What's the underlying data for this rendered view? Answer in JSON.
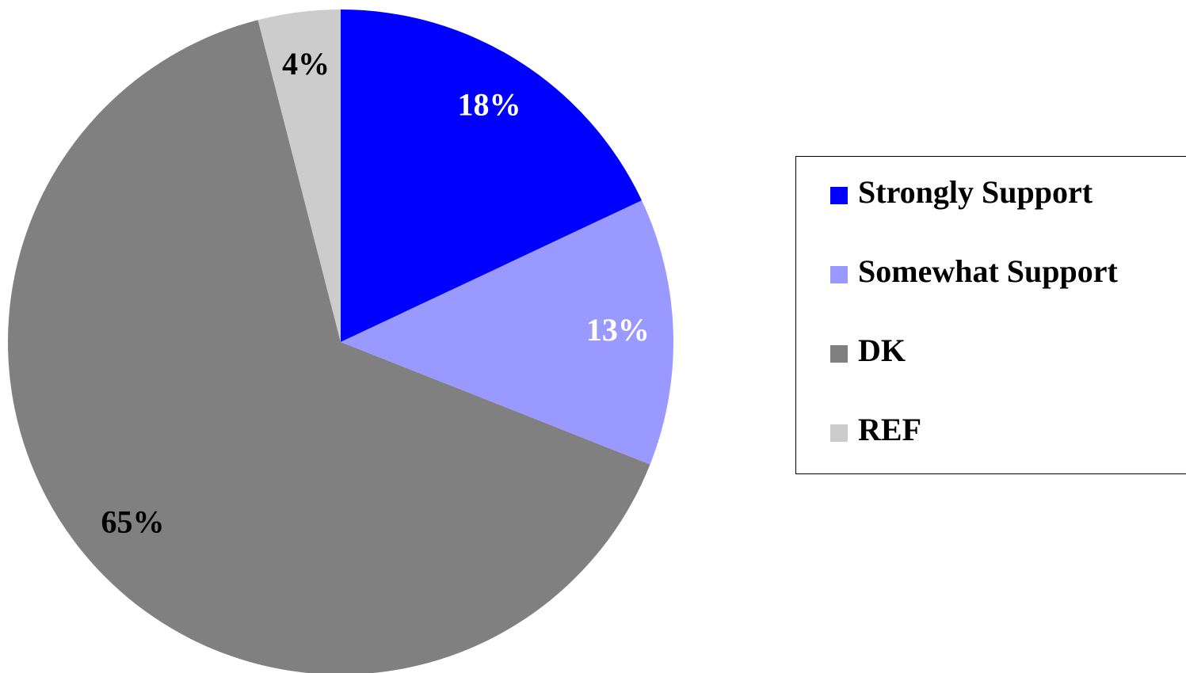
{
  "chart_data": {
    "type": "pie",
    "categories": [
      "Strongly Support",
      "Somewhat Support",
      "DK",
      "REF"
    ],
    "values": [
      18,
      13,
      65,
      4
    ],
    "value_labels": [
      "18%",
      "13%",
      "65%",
      "4%"
    ],
    "colors": [
      "#0000ff",
      "#9999ff",
      "#808080",
      "#cccccc"
    ],
    "legend": "right"
  }
}
